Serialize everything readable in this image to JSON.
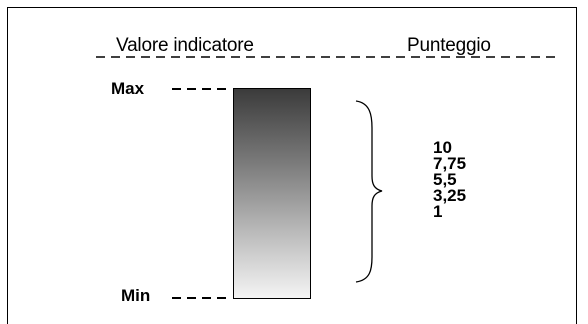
{
  "header": {
    "left_label": "Valore indicatore",
    "right_label": "Punteggio"
  },
  "scale": {
    "max_label": "Max",
    "min_label": "Min"
  },
  "scores": [
    "10",
    "7,75",
    "5,5",
    "3,25",
    "1"
  ],
  "colors": {
    "line": "#000000",
    "gradient_top": "#3b3b3b",
    "gradient_bottom": "#f4f4f4"
  }
}
